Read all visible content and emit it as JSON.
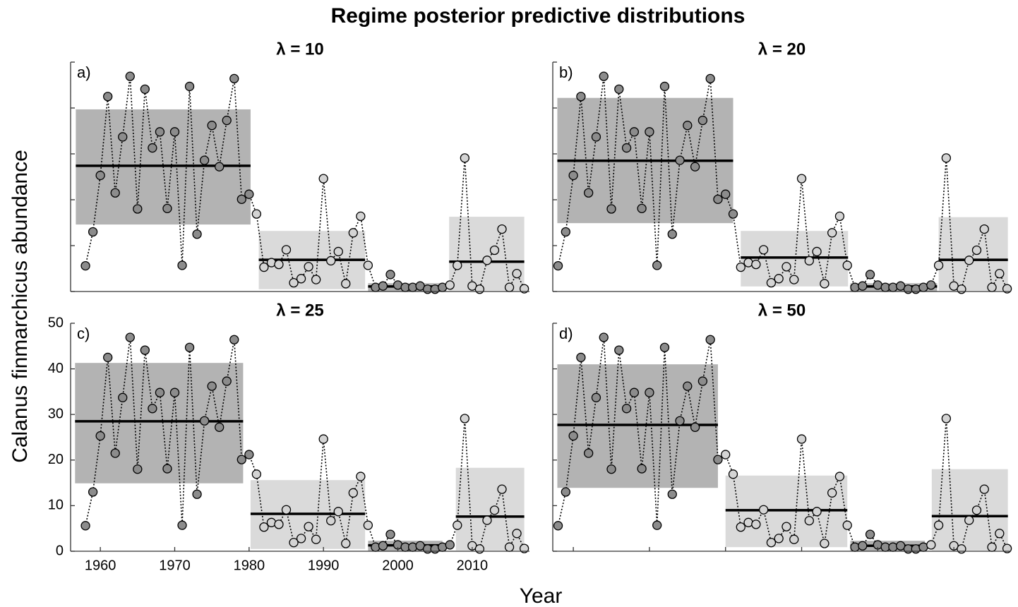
{
  "title": "Regime posterior predictive distributions",
  "xlabel": "Year",
  "ylabel": "Calanus finmarchicus abundance",
  "chart_data": [
    {
      "type": "scatter",
      "title": "λ = 10",
      "label": "a)",
      "x": [
        1958,
        1959,
        1960,
        1961,
        1962,
        1963,
        1964,
        1965,
        1966,
        1967,
        1968,
        1969,
        1970,
        1971,
        1972,
        1973,
        1974,
        1975,
        1976,
        1977,
        1978,
        1979,
        1980,
        1981,
        1982,
        1983,
        1984,
        1985,
        1986,
        1987,
        1988,
        1989,
        1990,
        1991,
        1992,
        1993,
        1994,
        1995,
        1996,
        1997,
        1998,
        1999,
        2000,
        2001,
        2002,
        2003,
        2004,
        2005,
        2006,
        2007,
        2008,
        2009,
        2010,
        2011,
        2012,
        2013,
        2014,
        2015,
        2016,
        2017
      ],
      "values": [
        5.6,
        13.0,
        25.3,
        42.5,
        21.5,
        33.7,
        46.9,
        18.0,
        44.1,
        31.3,
        34.8,
        18.1,
        34.8,
        5.7,
        44.7,
        12.5,
        28.6,
        36.2,
        27.2,
        37.3,
        46.4,
        20.1,
        21.2,
        16.9,
        5.3,
        6.3,
        5.9,
        9.1,
        1.9,
        2.8,
        5.4,
        2.6,
        24.6,
        6.7,
        8.7,
        1.7,
        12.8,
        16.4,
        5.7,
        0.9,
        1.2,
        3.7,
        1.4,
        0.9,
        0.9,
        1.2,
        0.5,
        0.5,
        0.9,
        1.4,
        5.7,
        29.1,
        1.2,
        0.5,
        6.8,
        9.0,
        13.6,
        0.9,
        3.9,
        0.6
      ],
      "xlim": [
        1956,
        2017.7
      ],
      "ylim": [
        0,
        50
      ],
      "xticks": [
        1960,
        1970,
        1980,
        1990,
        2000,
        2010
      ],
      "yticks": [
        0,
        10,
        20,
        30,
        40,
        50
      ],
      "show_xticks": false,
      "show_xtick_labels": false,
      "show_ytick_labels": false,
      "regimes": [
        {
          "first": 1958,
          "last": 1980,
          "box": [
            1956.7,
            1980.2
          ],
          "lower": 14.6,
          "upper": 39.7,
          "mean": 27.4,
          "color": "#b3b3b3",
          "marker_color": "#8c8c8c"
        },
        {
          "first": 1981,
          "last": 1996,
          "box": [
            1981.3,
            1995.6
          ],
          "lower": 0.5,
          "upper": 13.2,
          "mean": 6.9,
          "color": "#dadada",
          "marker_color": "#d4d4d4"
        },
        {
          "first": 1997,
          "last": 2006,
          "box": [
            1996,
            2006
          ],
          "lower": 0,
          "upper": 1.8,
          "mean": 1.1,
          "color": "#b3b3b3",
          "marker_color": "#8c8c8c"
        },
        {
          "first": 2007,
          "last": 2017,
          "box": [
            2006.9,
            2017
          ],
          "lower": 0.2,
          "upper": 16.3,
          "mean": 6.5,
          "color": "#dadada",
          "marker_color": "#d4d4d4"
        }
      ]
    },
    {
      "type": "scatter",
      "title": "λ = 20",
      "label": "b)",
      "x": [
        1958,
        1959,
        1960,
        1961,
        1962,
        1963,
        1964,
        1965,
        1966,
        1967,
        1968,
        1969,
        1970,
        1971,
        1972,
        1973,
        1974,
        1975,
        1976,
        1977,
        1978,
        1979,
        1980,
        1981,
        1982,
        1983,
        1984,
        1985,
        1986,
        1987,
        1988,
        1989,
        1990,
        1991,
        1992,
        1993,
        1994,
        1995,
        1996,
        1997,
        1998,
        1999,
        2000,
        2001,
        2002,
        2003,
        2004,
        2005,
        2006,
        2007,
        2008,
        2009,
        2010,
        2011,
        2012,
        2013,
        2014,
        2015,
        2016,
        2017
      ],
      "values": [
        5.6,
        13.0,
        25.3,
        42.5,
        21.5,
        33.7,
        46.9,
        18.0,
        44.1,
        31.3,
        34.8,
        18.1,
        34.8,
        5.7,
        44.7,
        12.5,
        28.6,
        36.2,
        27.2,
        37.3,
        46.4,
        20.1,
        21.2,
        16.9,
        5.3,
        6.3,
        5.9,
        9.1,
        1.9,
        2.8,
        5.4,
        2.6,
        24.6,
        6.7,
        8.7,
        1.7,
        12.8,
        16.4,
        5.7,
        0.9,
        1.2,
        3.7,
        1.4,
        0.9,
        0.9,
        1.2,
        0.5,
        0.5,
        0.9,
        1.4,
        5.7,
        29.1,
        1.2,
        0.5,
        6.8,
        9.0,
        13.6,
        0.9,
        3.9,
        0.6
      ],
      "xlim": [
        1957.3,
        2017.5
      ],
      "ylim": [
        0,
        50
      ],
      "xticks": [
        1960,
        1970,
        1980,
        1990,
        2000,
        2010
      ],
      "yticks": [
        0,
        10,
        20,
        30,
        40,
        50
      ],
      "show_xticks": false,
      "show_xtick_labels": false,
      "show_ytick_labels": false,
      "regimes": [
        {
          "first": 1958,
          "last": 1981,
          "box": [
            1957.9,
            1981.0
          ],
          "lower": 14.9,
          "upper": 42.2,
          "mean": 28.5,
          "color": "#b3b3b3",
          "marker_color": "#8c8c8c"
        },
        {
          "first": 1982,
          "last": 1996,
          "box": [
            1982.0,
            1996.1
          ],
          "lower": 1.1,
          "upper": 13.2,
          "mean": 7.4,
          "color": "#dadada",
          "marker_color": "#d4d4d4"
        },
        {
          "first": 1997,
          "last": 2007,
          "box": [
            1996.4,
            2007.8
          ],
          "lower": 0,
          "upper": 1.8,
          "mean": 1.1,
          "color": "#b3b3b3",
          "marker_color": "#8c8c8c"
        },
        {
          "first": 2008,
          "last": 2017,
          "box": [
            2008.0,
            2017.1
          ],
          "lower": 0.2,
          "upper": 16.2,
          "mean": 6.9,
          "color": "#dadada",
          "marker_color": "#d4d4d4"
        }
      ]
    },
    {
      "type": "scatter",
      "title": "λ = 25",
      "label": "c)",
      "x": [
        1958,
        1959,
        1960,
        1961,
        1962,
        1963,
        1964,
        1965,
        1966,
        1967,
        1968,
        1969,
        1970,
        1971,
        1972,
        1973,
        1974,
        1975,
        1976,
        1977,
        1978,
        1979,
        1980,
        1981,
        1982,
        1983,
        1984,
        1985,
        1986,
        1987,
        1988,
        1989,
        1990,
        1991,
        1992,
        1993,
        1994,
        1995,
        1996,
        1997,
        1998,
        1999,
        2000,
        2001,
        2002,
        2003,
        2004,
        2005,
        2006,
        2007,
        2008,
        2009,
        2010,
        2011,
        2012,
        2013,
        2014,
        2015,
        2016,
        2017
      ],
      "values": [
        5.6,
        13.0,
        25.3,
        42.5,
        21.5,
        33.7,
        46.9,
        18.0,
        44.1,
        31.3,
        34.8,
        18.1,
        34.8,
        5.7,
        44.7,
        12.5,
        28.6,
        36.2,
        27.2,
        37.3,
        46.4,
        20.1,
        21.2,
        16.9,
        5.3,
        6.3,
        5.9,
        9.1,
        1.9,
        2.8,
        5.4,
        2.6,
        24.6,
        6.7,
        8.7,
        1.7,
        12.8,
        16.4,
        5.7,
        0.9,
        1.2,
        3.7,
        1.4,
        0.9,
        0.9,
        1.2,
        0.5,
        0.5,
        0.9,
        1.4,
        5.7,
        29.1,
        1.2,
        0.5,
        6.8,
        9.0,
        13.6,
        0.9,
        3.9,
        0.6
      ],
      "xlim": [
        1956,
        2017.7
      ],
      "ylim": [
        0,
        50
      ],
      "xticks": [
        1960,
        1970,
        1980,
        1990,
        2000,
        2010
      ],
      "yticks": [
        0,
        10,
        20,
        30,
        40,
        50
      ],
      "show_xticks": true,
      "show_xtick_labels": true,
      "show_ytick_labels": true,
      "regimes": [
        {
          "first": 1958,
          "last": 1980,
          "box": [
            1956.6,
            1979.2
          ],
          "lower": 14.9,
          "upper": 41.3,
          "mean": 28.5,
          "color": "#b3b3b3",
          "marker_color": "#8c8c8c"
        },
        {
          "first": 1981,
          "last": 1996,
          "box": [
            1980.2,
            1995.6
          ],
          "lower": 0.5,
          "upper": 15.6,
          "mean": 8.2,
          "color": "#dadada",
          "marker_color": "#d4d4d4"
        },
        {
          "first": 1997,
          "last": 2007,
          "box": [
            1996,
            2006
          ],
          "lower": 0,
          "upper": 2.3,
          "mean": 1.3,
          "color": "#b3b3b3",
          "marker_color": "#8c8c8c"
        },
        {
          "first": 2008,
          "last": 2017,
          "box": [
            2007.8,
            2017
          ],
          "lower": 0.2,
          "upper": 18.3,
          "mean": 7.6,
          "color": "#dadada",
          "marker_color": "#d4d4d4"
        }
      ]
    },
    {
      "type": "scatter",
      "title": "λ = 50",
      "label": "d)",
      "x": [
        1958,
        1959,
        1960,
        1961,
        1962,
        1963,
        1964,
        1965,
        1966,
        1967,
        1968,
        1969,
        1970,
        1971,
        1972,
        1973,
        1974,
        1975,
        1976,
        1977,
        1978,
        1979,
        1980,
        1981,
        1982,
        1983,
        1984,
        1985,
        1986,
        1987,
        1988,
        1989,
        1990,
        1991,
        1992,
        1993,
        1994,
        1995,
        1996,
        1997,
        1998,
        1999,
        2000,
        2001,
        2002,
        2003,
        2004,
        2005,
        2006,
        2007,
        2008,
        2009,
        2010,
        2011,
        2012,
        2013,
        2014,
        2015,
        2016,
        2017
      ],
      "values": [
        5.6,
        13.0,
        25.3,
        42.5,
        21.5,
        33.7,
        46.9,
        18.0,
        44.1,
        31.3,
        34.8,
        18.1,
        34.8,
        5.7,
        44.7,
        12.5,
        28.6,
        36.2,
        27.2,
        37.3,
        46.4,
        20.1,
        21.2,
        16.9,
        5.3,
        6.3,
        5.9,
        9.1,
        1.9,
        2.8,
        5.4,
        2.6,
        24.6,
        6.7,
        8.7,
        1.7,
        12.8,
        16.4,
        5.7,
        0.9,
        1.2,
        3.7,
        1.4,
        0.9,
        0.9,
        1.2,
        0.5,
        0.5,
        0.9,
        1.4,
        5.7,
        29.1,
        1.2,
        0.5,
        6.8,
        9.0,
        13.6,
        0.9,
        3.9,
        0.6
      ],
      "xlim": [
        1957.3,
        2017.5
      ],
      "ylim": [
        0,
        50
      ],
      "xticks": [
        1960,
        1970,
        1980,
        1990,
        2000,
        2010
      ],
      "yticks": [
        0,
        10,
        20,
        30,
        40,
        50
      ],
      "show_xticks": true,
      "show_xtick_labels": false,
      "show_ytick_labels": false,
      "regimes": [
        {
          "first": 1958,
          "last": 1979,
          "box": [
            1957.9,
            1979.0
          ],
          "lower": 13.9,
          "upper": 41.0,
          "mean": 27.7,
          "color": "#b3b3b3",
          "marker_color": "#8c8c8c"
        },
        {
          "first": 1980,
          "last": 1996,
          "box": [
            1980.0,
            1996.0
          ],
          "lower": 0.9,
          "upper": 16.6,
          "mean": 9.0,
          "color": "#dadada",
          "marker_color": "#d4d4d4"
        },
        {
          "first": 1997,
          "last": 2006,
          "box": [
            1996.4,
            2006.2
          ],
          "lower": 0,
          "upper": 2.3,
          "mean": 1.2,
          "color": "#b3b3b3",
          "marker_color": "#8c8c8c"
        },
        {
          "first": 2007,
          "last": 2017,
          "box": [
            2007.1,
            2017.1
          ],
          "lower": 0.2,
          "upper": 18.0,
          "mean": 7.7,
          "color": "#dadada",
          "marker_color": "#d4d4d4"
        }
      ]
    }
  ]
}
